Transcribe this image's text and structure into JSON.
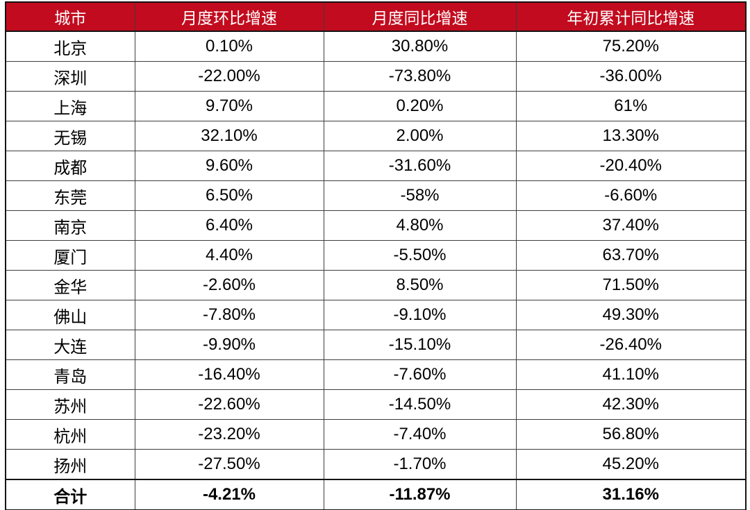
{
  "colors": {
    "header_bg": "#C20B1E",
    "header_text": "#FFFFFF",
    "body_text": "#000000",
    "grid_border": "#3D3D3D",
    "frame_border": "#141414",
    "background": "#FFFFFF"
  },
  "table": {
    "headers": [
      "城市",
      "月度环比增速",
      "月度同比增速",
      "年初累计同比增速"
    ],
    "rows": [
      {
        "city": "北京",
        "mom": "0.10%",
        "yoy": "30.80%",
        "ytd": "75.20%"
      },
      {
        "city": "深圳",
        "mom": "-22.00%",
        "yoy": "-73.80%",
        "ytd": "-36.00%"
      },
      {
        "city": "上海",
        "mom": "9.70%",
        "yoy": "0.20%",
        "ytd": "61%"
      },
      {
        "city": "无锡",
        "mom": "32.10%",
        "yoy": "2.00%",
        "ytd": "13.30%"
      },
      {
        "city": "成都",
        "mom": "9.60%",
        "yoy": "-31.60%",
        "ytd": "-20.40%"
      },
      {
        "city": "东莞",
        "mom": "6.50%",
        "yoy": "-58%",
        "ytd": "-6.60%"
      },
      {
        "city": "南京",
        "mom": "6.40%",
        "yoy": "4.80%",
        "ytd": "37.40%"
      },
      {
        "city": "厦门",
        "mom": "4.40%",
        "yoy": "-5.50%",
        "ytd": "63.70%"
      },
      {
        "city": "金华",
        "mom": "-2.60%",
        "yoy": "8.50%",
        "ytd": "71.50%"
      },
      {
        "city": "佛山",
        "mom": "-7.80%",
        "yoy": "-9.10%",
        "ytd": "49.30%"
      },
      {
        "city": "大连",
        "mom": "-9.90%",
        "yoy": "-15.10%",
        "ytd": "-26.40%"
      },
      {
        "city": "青岛",
        "mom": "-16.40%",
        "yoy": "-7.60%",
        "ytd": "41.10%"
      },
      {
        "city": "苏州",
        "mom": "-22.60%",
        "yoy": "-14.50%",
        "ytd": "42.30%"
      },
      {
        "city": "杭州",
        "mom": "-23.20%",
        "yoy": "-7.40%",
        "ytd": "56.80%"
      },
      {
        "city": "扬州",
        "mom": "-27.50%",
        "yoy": "-1.70%",
        "ytd": "45.20%"
      }
    ],
    "total": {
      "city": "合计",
      "mom": "-4.21%",
      "yoy": "-11.87%",
      "ytd": "31.16%"
    }
  },
  "chart_data": {
    "type": "table",
    "columns": [
      "城市",
      "月度环比增速",
      "月度同比增速",
      "年初累计同比增速"
    ],
    "rows": [
      {
        "city": "北京",
        "mom_pct": 0.1,
        "yoy_pct": 30.8,
        "ytd_pct": 75.2
      },
      {
        "city": "深圳",
        "mom_pct": -22.0,
        "yoy_pct": -73.8,
        "ytd_pct": -36.0
      },
      {
        "city": "上海",
        "mom_pct": 9.7,
        "yoy_pct": 0.2,
        "ytd_pct": 61.0
      },
      {
        "city": "无锡",
        "mom_pct": 32.1,
        "yoy_pct": 2.0,
        "ytd_pct": 13.3
      },
      {
        "city": "成都",
        "mom_pct": 9.6,
        "yoy_pct": -31.6,
        "ytd_pct": -20.4
      },
      {
        "city": "东莞",
        "mom_pct": 6.5,
        "yoy_pct": -58.0,
        "ytd_pct": -6.6
      },
      {
        "city": "南京",
        "mom_pct": 6.4,
        "yoy_pct": 4.8,
        "ytd_pct": 37.4
      },
      {
        "city": "厦门",
        "mom_pct": 4.4,
        "yoy_pct": -5.5,
        "ytd_pct": 63.7
      },
      {
        "city": "金华",
        "mom_pct": -2.6,
        "yoy_pct": 8.5,
        "ytd_pct": 71.5
      },
      {
        "city": "佛山",
        "mom_pct": -7.8,
        "yoy_pct": -9.1,
        "ytd_pct": 49.3
      },
      {
        "city": "大连",
        "mom_pct": -9.9,
        "yoy_pct": -15.1,
        "ytd_pct": -26.4
      },
      {
        "city": "青岛",
        "mom_pct": -16.4,
        "yoy_pct": -7.6,
        "ytd_pct": 41.1
      },
      {
        "city": "苏州",
        "mom_pct": -22.6,
        "yoy_pct": -14.5,
        "ytd_pct": 42.3
      },
      {
        "city": "杭州",
        "mom_pct": -23.2,
        "yoy_pct": -7.4,
        "ytd_pct": 56.8
      },
      {
        "city": "扬州",
        "mom_pct": -27.5,
        "yoy_pct": -1.7,
        "ytd_pct": 45.2
      }
    ],
    "total": {
      "city": "合计",
      "mom_pct": -4.21,
      "yoy_pct": -11.87,
      "ytd_pct": 31.16
    }
  }
}
